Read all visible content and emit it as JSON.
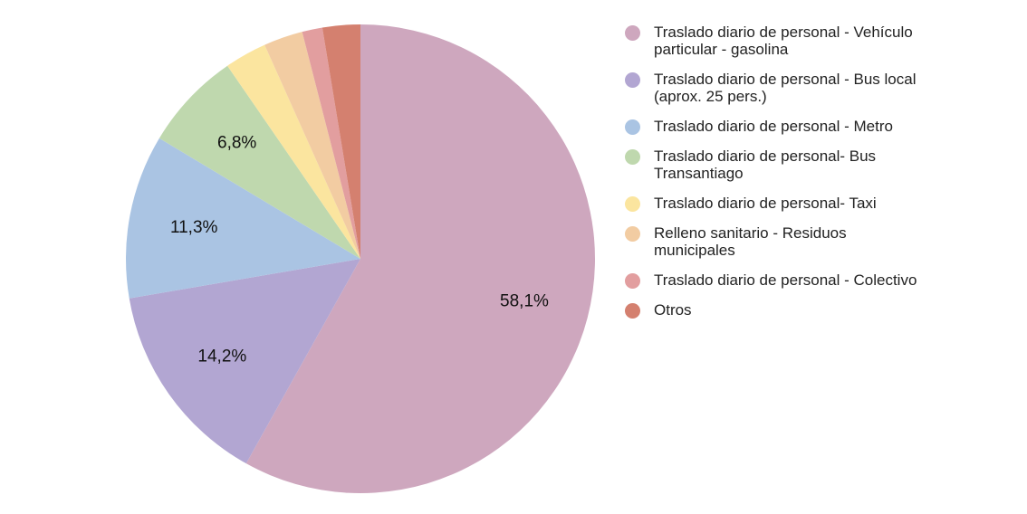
{
  "chart_data": {
    "type": "pie",
    "title": "",
    "categories": [
      "Traslado diario de personal - Vehículo particular - gasolina",
      "Traslado diario de personal - Bus local (aprox. 25 pers.)",
      "Traslado diario de personal - Metro",
      "Traslado diario de personal- Bus Transantiago",
      "Traslado diario de personal- Taxi",
      "Relleno sanitario - Residuos municipales",
      "Traslado diario de personal - Colectivo",
      "Otros"
    ],
    "values": [
      58.1,
      14.2,
      11.3,
      6.8,
      2.9,
      2.7,
      1.4,
      2.6
    ],
    "data_labels": [
      "58,1%",
      "14,2%",
      "11,3%",
      "6,8%",
      "",
      "",
      "",
      ""
    ],
    "colors": [
      "#cea7be",
      "#b2a6d2",
      "#aac4e3",
      "#bfd8ae",
      "#fbe59f",
      "#f2cca2",
      "#e29e9f",
      "#d4806f"
    ],
    "start_angle_deg": 0,
    "direction": "clockwise",
    "legend_position": "right"
  }
}
